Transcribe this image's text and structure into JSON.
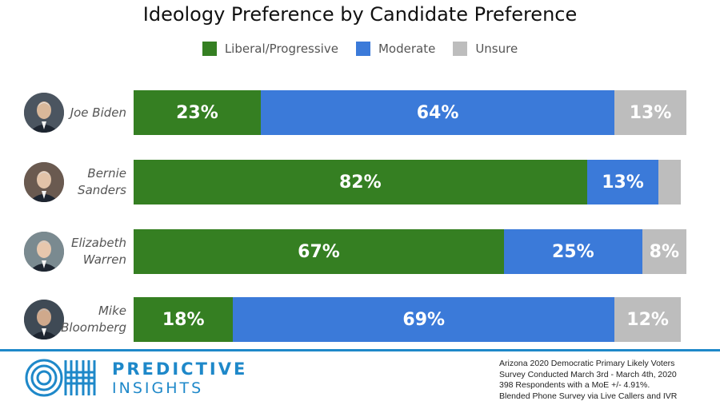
{
  "chart_data": {
    "type": "bar",
    "orientation": "horizontal",
    "stacked": true,
    "title": "Ideology Preference by Candidate Preference",
    "categories": [
      "Joe Biden",
      "Bernie\nSanders",
      "Elizabeth\nWarren",
      "Mike\nBloomberg"
    ],
    "series": [
      {
        "name": "Liberal/Progressive",
        "color": "#357f22",
        "values": [
          23,
          82,
          67,
          18
        ],
        "labels": [
          "23%",
          "82%",
          "67%",
          "18%"
        ]
      },
      {
        "name": "Moderate",
        "color": "#3b7ad9",
        "values": [
          64,
          13,
          25,
          69
        ],
        "labels": [
          "64%",
          "13%",
          "25%",
          "69%"
        ]
      },
      {
        "name": "Unsure",
        "color": "#bdbdbd",
        "values": [
          13,
          4,
          8,
          12
        ],
        "labels": [
          "13%",
          "",
          "8%",
          "12%"
        ]
      }
    ],
    "xlim": [
      0,
      100
    ],
    "legend": "top-center",
    "grid": false
  },
  "branding": {
    "word1": "PREDICTIVE",
    "word2": "INSIGHTS",
    "logo_icon": "oh-logo-icon",
    "color": "#1e88c9"
  },
  "notes": [
    "Arizona 2020 Democratic Primary Likely Voters",
    "Survey Conducted March 3rd - March 4th, 2020",
    "398 Respondents with a MoE +/- 4.91%.",
    "Blended Phone Survey via Live Callers and IVR"
  ],
  "avatars": [
    "person-photo-icon",
    "person-photo-icon",
    "person-photo-icon",
    "person-photo-icon"
  ]
}
